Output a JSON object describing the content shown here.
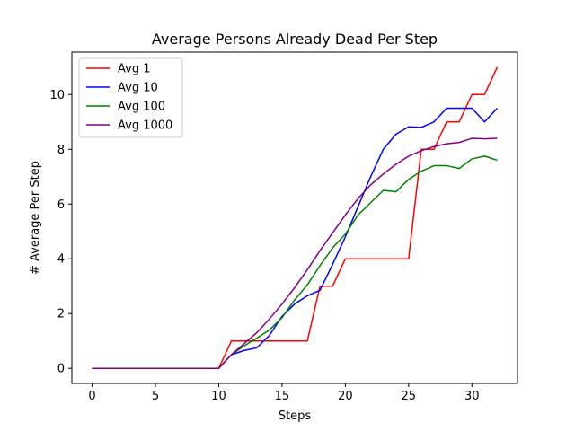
{
  "chart_data": {
    "type": "line",
    "title": "Average Persons Already Dead Per Step",
    "xlabel": "Steps",
    "ylabel": "# Average Per Step",
    "xlim": [
      -1.6,
      33.6
    ],
    "ylim": [
      -0.55,
      11.55
    ],
    "xticks": [
      0,
      5,
      10,
      15,
      20,
      25,
      30
    ],
    "yticks": [
      0,
      2,
      4,
      6,
      8,
      10
    ],
    "grid": false,
    "legend_position": "top-left",
    "x": [
      0,
      1,
      2,
      3,
      4,
      5,
      6,
      7,
      8,
      9,
      10,
      11,
      12,
      13,
      14,
      15,
      16,
      17,
      18,
      19,
      20,
      21,
      22,
      23,
      24,
      25,
      26,
      27,
      28,
      29,
      30,
      31,
      32
    ],
    "series": [
      {
        "name": "Avg 1",
        "color": "#ff0000",
        "values": [
          0,
          0,
          0,
          0,
          0,
          0,
          0,
          0,
          0,
          0,
          0,
          1,
          1,
          1,
          1,
          1,
          1,
          1,
          3,
          3,
          4,
          4,
          4,
          4,
          4,
          4,
          8,
          8,
          9,
          9,
          10,
          10,
          11
        ]
      },
      {
        "name": "Avg 10",
        "color": "#0000ff",
        "values": [
          0,
          0,
          0,
          0,
          0,
          0,
          0,
          0,
          0,
          0,
          0,
          0.5,
          0.65,
          0.75,
          1.2,
          1.9,
          2.35,
          2.65,
          2.85,
          3.8,
          4.8,
          5.9,
          7.0,
          8.0,
          8.55,
          8.82,
          8.8,
          9.0,
          9.5,
          9.5,
          9.5,
          9.0,
          9.5
        ]
      },
      {
        "name": "Avg 100",
        "color": "#008000",
        "values": [
          0,
          0,
          0,
          0,
          0,
          0,
          0,
          0,
          0,
          0,
          0,
          0.5,
          0.82,
          1.1,
          1.4,
          1.85,
          2.5,
          3.05,
          3.75,
          4.4,
          4.9,
          5.6,
          6.05,
          6.5,
          6.45,
          6.9,
          7.2,
          7.4,
          7.4,
          7.3,
          7.65,
          7.75,
          7.6
        ]
      },
      {
        "name": "Avg 1000",
        "color": "#800080",
        "values": [
          0,
          0,
          0,
          0,
          0,
          0,
          0,
          0,
          0,
          0,
          0,
          0.5,
          0.9,
          1.3,
          1.8,
          2.35,
          2.95,
          3.6,
          4.3,
          4.95,
          5.6,
          6.2,
          6.7,
          7.1,
          7.45,
          7.75,
          7.95,
          8.1,
          8.2,
          8.25,
          8.4,
          8.38,
          8.4
        ]
      }
    ]
  }
}
